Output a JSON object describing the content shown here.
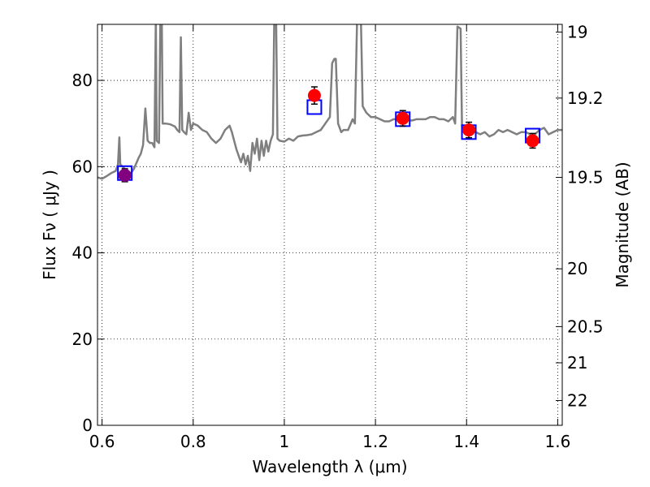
{
  "chart_data": {
    "type": "scatter",
    "xlabel": "Wavelength  λ (μm)",
    "ylabel": "Flux  Fν  ( μJy )",
    "y2label": "Magnitude (AB)",
    "xlim": [
      0.59,
      1.61
    ],
    "ylim": [
      0,
      93
    ],
    "grid": true,
    "grid_style": "dotted",
    "x_ticks": [
      {
        "value": 0.6,
        "label": "0.6"
      },
      {
        "value": 0.8,
        "label": "0.8"
      },
      {
        "value": 1.0,
        "label": "1"
      },
      {
        "value": 1.2,
        "label": "1.2"
      },
      {
        "value": 1.4,
        "label": "1.4"
      },
      {
        "value": 1.6,
        "label": "1.6"
      }
    ],
    "y_ticks": [
      {
        "value": 0,
        "label": "0"
      },
      {
        "value": 20,
        "label": "20"
      },
      {
        "value": 40,
        "label": "40"
      },
      {
        "value": 60,
        "label": "60"
      },
      {
        "value": 80,
        "label": "80"
      }
    ],
    "y2_ticks": [
      {
        "flux": 91.2,
        "label": "19"
      },
      {
        "flux": 75.9,
        "label": "19.2"
      },
      {
        "flux": 57.5,
        "label": "19.5"
      },
      {
        "flux": 36.3,
        "label": "20"
      },
      {
        "flux": 22.9,
        "label": "20.5"
      },
      {
        "flux": 14.5,
        "label": "21"
      },
      {
        "flux": 5.75,
        "label": "22"
      }
    ],
    "spectrum": {
      "color": "#7f7f7f",
      "points": [
        [
          0.59,
          57.5
        ],
        [
          0.6,
          57.2
        ],
        [
          0.61,
          57.8
        ],
        [
          0.62,
          58.5
        ],
        [
          0.63,
          59.0
        ],
        [
          0.635,
          60.5
        ],
        [
          0.638,
          66.8
        ],
        [
          0.64,
          60.5
        ],
        [
          0.645,
          60.0
        ],
        [
          0.65,
          59.5
        ],
        [
          0.66,
          58.0
        ],
        [
          0.67,
          59.5
        ],
        [
          0.68,
          62.0
        ],
        [
          0.685,
          63.0
        ],
        [
          0.69,
          65.0
        ],
        [
          0.695,
          73.5
        ],
        [
          0.7,
          66.0
        ],
        [
          0.705,
          65.5
        ],
        [
          0.71,
          65.5
        ],
        [
          0.715,
          64.5
        ],
        [
          0.718,
          95.0
        ],
        [
          0.72,
          66.0
        ],
        [
          0.725,
          65.5
        ],
        [
          0.728,
          95.0
        ],
        [
          0.731,
          95.0
        ],
        [
          0.733,
          70.0
        ],
        [
          0.74,
          70.0
        ],
        [
          0.75,
          69.8
        ],
        [
          0.76,
          69.3
        ],
        [
          0.765,
          68.5
        ],
        [
          0.77,
          68.0
        ],
        [
          0.773,
          90.0
        ],
        [
          0.776,
          68.5
        ],
        [
          0.78,
          68.0
        ],
        [
          0.785,
          67.5
        ],
        [
          0.79,
          72.5
        ],
        [
          0.795,
          68.5
        ],
        [
          0.8,
          70.0
        ],
        [
          0.81,
          69.5
        ],
        [
          0.82,
          68.5
        ],
        [
          0.83,
          68.0
        ],
        [
          0.84,
          66.5
        ],
        [
          0.85,
          65.5
        ],
        [
          0.86,
          66.5
        ],
        [
          0.87,
          68.5
        ],
        [
          0.88,
          69.5
        ],
        [
          0.885,
          68.0
        ],
        [
          0.89,
          66.0
        ],
        [
          0.895,
          64.0
        ],
        [
          0.9,
          62.5
        ],
        [
          0.905,
          61.0
        ],
        [
          0.91,
          63.0
        ],
        [
          0.915,
          60.5
        ],
        [
          0.92,
          62.5
        ],
        [
          0.925,
          59.0
        ],
        [
          0.93,
          65.5
        ],
        [
          0.935,
          63.0
        ],
        [
          0.94,
          66.5
        ],
        [
          0.945,
          61.5
        ],
        [
          0.95,
          66.0
        ],
        [
          0.955,
          62.5
        ],
        [
          0.96,
          66.0
        ],
        [
          0.965,
          63.5
        ],
        [
          0.97,
          66.0
        ],
        [
          0.975,
          67.5
        ],
        [
          0.978,
          95.0
        ],
        [
          0.982,
          95.0
        ],
        [
          0.985,
          66.5
        ],
        [
          0.99,
          66.0
        ],
        [
          1.0,
          65.8
        ],
        [
          1.01,
          66.5
        ],
        [
          1.02,
          66.0
        ],
        [
          1.03,
          67.0
        ],
        [
          1.04,
          67.2
        ],
        [
          1.05,
          67.3
        ],
        [
          1.06,
          67.5
        ],
        [
          1.07,
          68.0
        ],
        [
          1.08,
          68.5
        ],
        [
          1.09,
          70.0
        ],
        [
          1.1,
          71.5
        ],
        [
          1.105,
          84.0
        ],
        [
          1.11,
          85.0
        ],
        [
          1.113,
          85.0
        ],
        [
          1.118,
          70.0
        ],
        [
          1.125,
          68.0
        ],
        [
          1.13,
          68.5
        ],
        [
          1.14,
          68.5
        ],
        [
          1.15,
          71.0
        ],
        [
          1.155,
          70.0
        ],
        [
          1.16,
          95.0
        ],
        [
          1.168,
          95.0
        ],
        [
          1.172,
          74.0
        ],
        [
          1.18,
          72.5
        ],
        [
          1.19,
          71.5
        ],
        [
          1.2,
          71.5
        ],
        [
          1.21,
          71.0
        ],
        [
          1.22,
          70.5
        ],
        [
          1.23,
          70.5
        ],
        [
          1.24,
          71.0
        ],
        [
          1.25,
          71.0
        ],
        [
          1.26,
          71.0
        ],
        [
          1.27,
          70.8
        ],
        [
          1.28,
          70.7
        ],
        [
          1.29,
          71.0
        ],
        [
          1.3,
          71.0
        ],
        [
          1.31,
          71.0
        ],
        [
          1.32,
          71.5
        ],
        [
          1.33,
          71.5
        ],
        [
          1.34,
          71.0
        ],
        [
          1.35,
          71.0
        ],
        [
          1.36,
          70.5
        ],
        [
          1.37,
          71.5
        ],
        [
          1.375,
          70.0
        ],
        [
          1.38,
          92.5
        ],
        [
          1.387,
          92.0
        ],
        [
          1.39,
          69.5
        ],
        [
          1.4,
          68.5
        ],
        [
          1.41,
          68.5
        ],
        [
          1.42,
          68.0
        ],
        [
          1.43,
          67.5
        ],
        [
          1.44,
          68.0
        ],
        [
          1.45,
          67.0
        ],
        [
          1.46,
          67.5
        ],
        [
          1.47,
          68.5
        ],
        [
          1.48,
          68.0
        ],
        [
          1.49,
          68.5
        ],
        [
          1.5,
          68.0
        ],
        [
          1.51,
          67.5
        ],
        [
          1.52,
          68.0
        ],
        [
          1.53,
          68.0
        ],
        [
          1.54,
          67.5
        ],
        [
          1.55,
          67.5
        ],
        [
          1.56,
          68.5
        ],
        [
          1.57,
          69.0
        ],
        [
          1.58,
          67.5
        ],
        [
          1.59,
          68.0
        ],
        [
          1.6,
          68.5
        ],
        [
          1.61,
          68.5
        ]
      ]
    },
    "photometry": [
      {
        "x": 0.65,
        "flux": 58.0,
        "err": 1.5,
        "color": "#ff0000"
      },
      {
        "x": 1.066,
        "flux": 76.5,
        "err": 2.0,
        "color": "#ff0000"
      },
      {
        "x": 1.26,
        "flux": 71.2,
        "err": 1.8,
        "color": "#ff0000"
      },
      {
        "x": 1.405,
        "flux": 68.5,
        "err": 1.8,
        "color": "#ff0000"
      },
      {
        "x": 1.545,
        "flux": 66.0,
        "err": 1.7,
        "color": "#ff0000"
      }
    ],
    "model_fluxes": [
      {
        "x": 0.65,
        "flux": 58.5,
        "color": "#0000ff"
      },
      {
        "x": 1.066,
        "flux": 73.8,
        "color": "#0000ff"
      },
      {
        "x": 1.26,
        "flux": 71.0,
        "color": "#0000ff"
      },
      {
        "x": 1.405,
        "flux": 68.0,
        "color": "#0000ff"
      },
      {
        "x": 1.545,
        "flux": 67.2,
        "color": "#0000ff"
      }
    ],
    "overlap_color": "#800080"
  }
}
